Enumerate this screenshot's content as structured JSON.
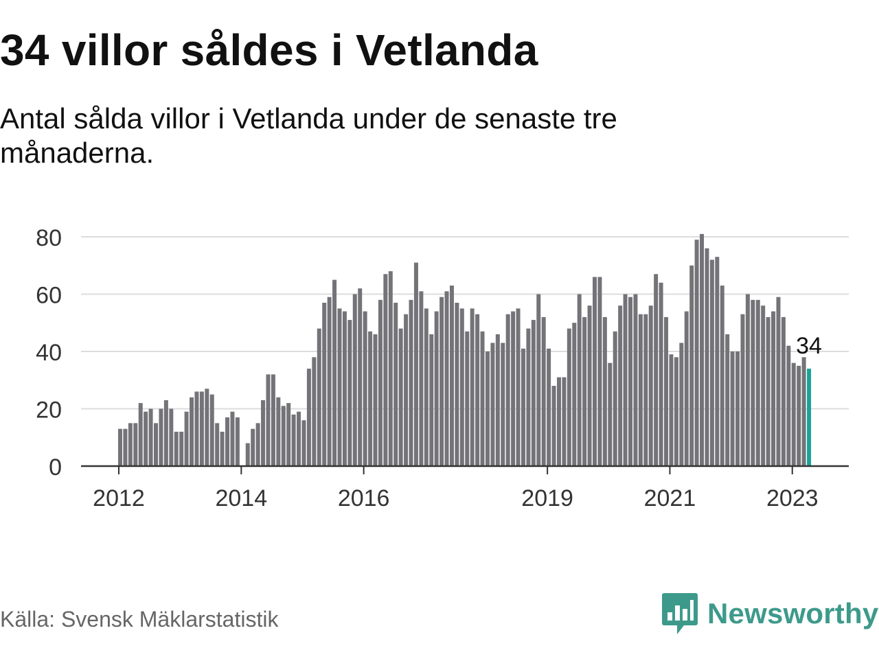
{
  "title": "34 villor såldes i Vetlanda",
  "subtitle": "Antal sålda villor i Vetlanda under de senaste tre månaderna.",
  "source": "Källa: Svensk Mäklarstatistik",
  "brand": "Newsworthy",
  "colors": {
    "bar": "#747378",
    "highlight": "#1aa398",
    "grid": "#dcdcdc",
    "axis": "#333333",
    "brand": "#3d9a8b"
  },
  "chart_data": {
    "type": "bar",
    "title": "34 villor såldes i Vetlanda",
    "subtitle": "Antal sålda villor i Vetlanda under de senaste tre månaderna.",
    "xlabel": "",
    "ylabel": "",
    "ylim": [
      0,
      80
    ],
    "yticks": [
      0,
      20,
      40,
      60,
      80
    ],
    "grid": true,
    "x_tick_labels": [
      {
        "label": "2012",
        "index": 0
      },
      {
        "label": "2014",
        "index": 24
      },
      {
        "label": "2016",
        "index": 48
      },
      {
        "label": "2019",
        "index": 84
      },
      {
        "label": "2021",
        "index": 108
      },
      {
        "label": "2023",
        "index": 132
      }
    ],
    "highlight": {
      "index": 135,
      "value": 34,
      "label": "34"
    },
    "values": [
      13,
      13,
      15,
      15,
      22,
      19,
      20,
      15,
      20,
      23,
      20,
      12,
      12,
      19,
      24,
      26,
      26,
      27,
      25,
      15,
      12,
      17,
      19,
      17,
      null,
      8,
      13,
      15,
      23,
      32,
      32,
      24,
      21,
      22,
      18,
      19,
      16,
      34,
      38,
      48,
      57,
      59,
      65,
      55,
      54,
      51,
      60,
      62,
      54,
      47,
      46,
      58,
      67,
      68,
      57,
      48,
      53,
      58,
      71,
      61,
      55,
      46,
      54,
      59,
      61,
      63,
      57,
      55,
      47,
      55,
      53,
      47,
      40,
      43,
      46,
      43,
      53,
      54,
      55,
      41,
      48,
      51,
      60,
      52,
      41,
      28,
      31,
      31,
      48,
      50,
      60,
      52,
      56,
      66,
      66,
      52,
      36,
      47,
      56,
      60,
      59,
      60,
      53,
      53,
      56,
      67,
      64,
      52,
      39,
      38,
      43,
      54,
      70,
      79,
      81,
      76,
      72,
      73,
      63,
      46,
      40,
      40,
      53,
      60,
      58,
      58,
      56,
      52,
      54,
      59,
      52,
      42,
      36,
      35,
      38,
      34
    ]
  }
}
